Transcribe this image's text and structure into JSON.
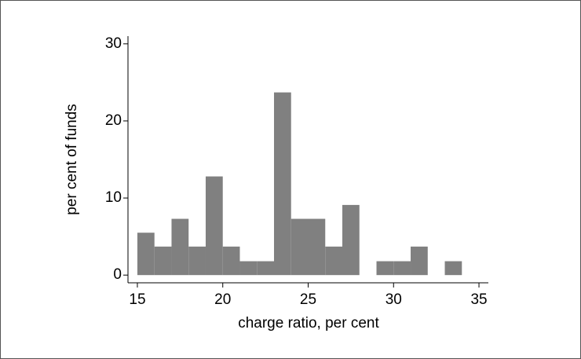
{
  "chart_data": {
    "type": "histogram",
    "xlabel": "charge ratio, per cent",
    "ylabel": "per cent of funds",
    "bins": [
      15,
      16,
      17,
      18,
      19,
      20,
      21,
      22,
      23,
      24,
      25,
      26,
      27,
      28,
      29,
      30,
      31,
      32,
      33,
      34
    ],
    "values": [
      5.5,
      3.7,
      7.3,
      3.7,
      12.8,
      3.7,
      1.8,
      1.8,
      23.7,
      7.3,
      7.3,
      3.7,
      9.1,
      0,
      1.8,
      1.8,
      3.7,
      0,
      1.8
    ],
    "color": "#808080",
    "xlim": [
      14.45,
      35.55
    ],
    "xticks": [
      15,
      20,
      25,
      30,
      35
    ],
    "ylim": [
      -1,
      31
    ],
    "yticks": [
      0,
      10,
      20,
      30
    ]
  }
}
